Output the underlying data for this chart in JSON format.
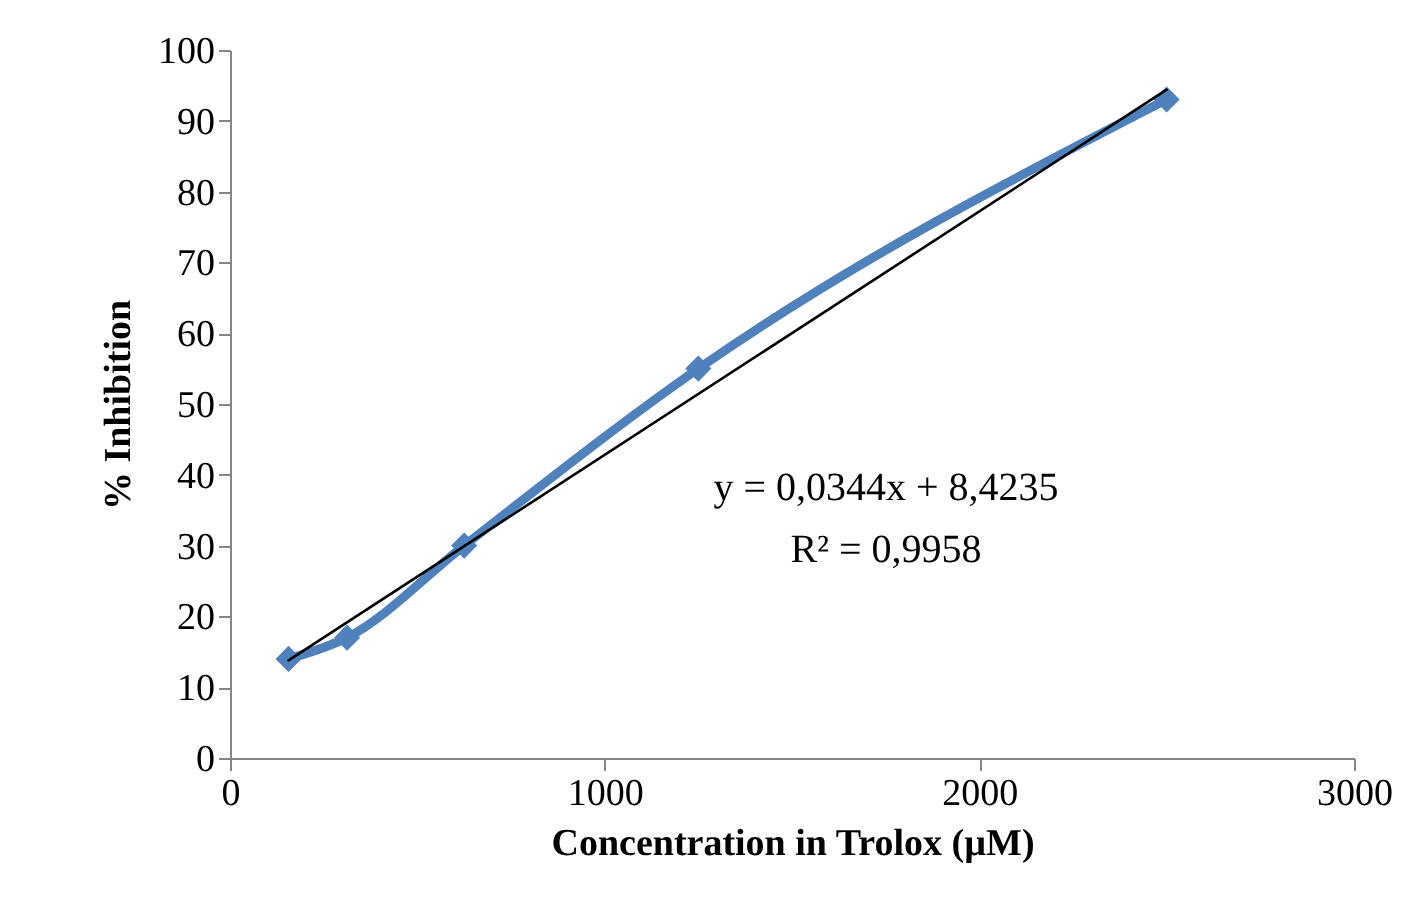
{
  "chart_data": {
    "type": "line",
    "xlabel": "Concentration in Trolox (µM)",
    "ylabel": "% Inhibition",
    "xlim": [
      0,
      3000
    ],
    "xticks": [
      0,
      1000,
      2000,
      3000
    ],
    "ylim": [
      0,
      100
    ],
    "yticks": [
      0,
      10,
      20,
      30,
      40,
      50,
      60,
      70,
      80,
      90,
      100
    ],
    "grid": false,
    "marker": "diamond",
    "series": [
      {
        "color": "#4f81bd",
        "x": [
          156.25,
          312.5,
          625,
          1250,
          2500
        ],
        "values": [
          14,
          17,
          30,
          55,
          93
        ]
      },
      {
        "color": "#000000",
        "marker": "none",
        "x": [
          156.25,
          2500
        ],
        "values": [
          13.8,
          94.4
        ]
      }
    ],
    "annotations": [
      "y = 0,0344x + 8,4235",
      "R² = 0,9958"
    ]
  }
}
